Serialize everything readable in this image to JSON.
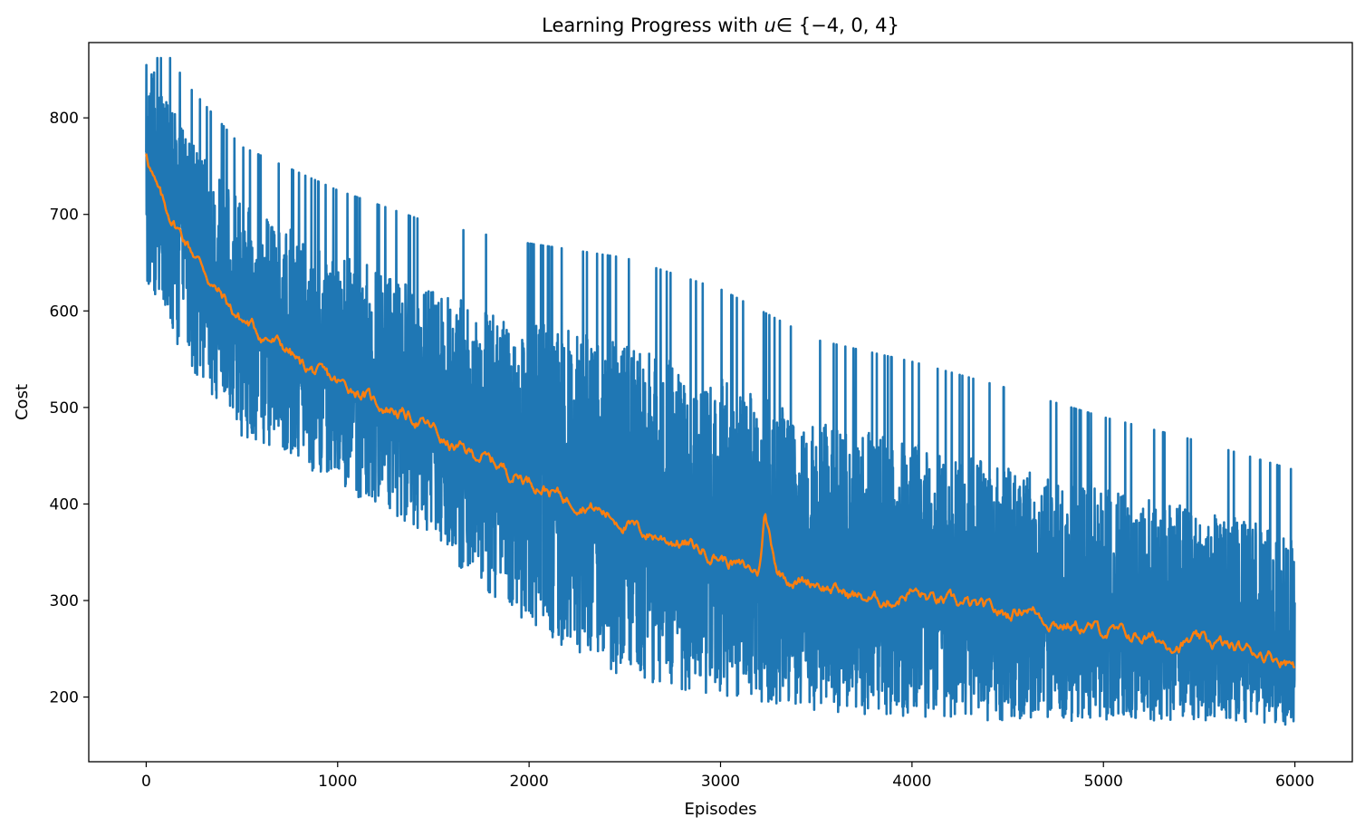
{
  "chart_data": {
    "type": "line",
    "title_prefix": "Learning Progress with ",
    "title_math": "u ∈ {−4, 0, 4}",
    "title_var": "u",
    "title_set": "∈ {−4, 0, 4}",
    "xlabel": "Episodes",
    "ylabel": "Cost",
    "xlim": [
      -300,
      6300
    ],
    "ylim": [
      133,
      878
    ],
    "xticks": [
      0,
      1000,
      2000,
      3000,
      4000,
      5000,
      6000
    ],
    "yticks": [
      200,
      300,
      400,
      500,
      600,
      700,
      800
    ],
    "grid": false,
    "legend": "none",
    "series": [
      {
        "color": "#1f77b4",
        "description": "raw per-episode cost",
        "n_points": 6000,
        "trend_x": [
          0,
          200,
          500,
          1000,
          1500,
          2000,
          2500,
          3000,
          3500,
          4000,
          4500,
          5000,
          5500,
          6000
        ],
        "trend_y": [
          765,
          680,
          590,
          530,
          480,
          430,
          385,
          345,
          315,
          300,
          280,
          265,
          255,
          240
        ],
        "spread_low": [
          -140,
          -130,
          -120,
          -110,
          -120,
          -160,
          -165,
          -145,
          -130,
          -120,
          -105,
          -90,
          -80,
          -70
        ],
        "spread_high": [
          100,
          105,
          120,
          130,
          140,
          160,
          180,
          185,
          170,
          165,
          160,
          150,
          140,
          130
        ],
        "min": 168,
        "max": 862
      },
      {
        "color": "#ff7f0e",
        "description": "moving average of cost",
        "x": [
          0,
          50,
          100,
          150,
          200,
          250,
          300,
          350,
          400,
          450,
          500,
          550,
          600,
          650,
          700,
          750,
          800,
          850,
          900,
          950,
          1000,
          1050,
          1100,
          1150,
          1200,
          1250,
          1300,
          1350,
          1400,
          1450,
          1500,
          1550,
          1600,
          1650,
          1700,
          1750,
          1800,
          1850,
          1900,
          1950,
          2000,
          2100,
          2200,
          2300,
          2400,
          2500,
          2600,
          2700,
          2800,
          2900,
          3000,
          3100,
          3200,
          3230,
          3300,
          3400,
          3500,
          3600,
          3700,
          3800,
          3900,
          4000,
          4100,
          4200,
          4300,
          4400,
          4500,
          4600,
          4700,
          4800,
          4900,
          5000,
          5100,
          5200,
          5300,
          5400,
          5500,
          5600,
          5700,
          5800,
          5900,
          6000
        ],
        "y": [
          765,
          730,
          705,
          690,
          675,
          660,
          645,
          625,
          615,
          600,
          590,
          585,
          575,
          570,
          565,
          558,
          545,
          540,
          535,
          530,
          525,
          522,
          518,
          512,
          505,
          500,
          498,
          492,
          488,
          482,
          478,
          465,
          458,
          456,
          452,
          450,
          444,
          440,
          432,
          430,
          425,
          415,
          405,
          400,
          390,
          380,
          370,
          365,
          360,
          352,
          345,
          335,
          330,
          390,
          330,
          320,
          320,
          310,
          305,
          300,
          300,
          310,
          300,
          298,
          295,
          290,
          285,
          295,
          280,
          275,
          272,
          268,
          265,
          262,
          258,
          255,
          258,
          255,
          250,
          248,
          242,
          235
        ]
      }
    ]
  }
}
